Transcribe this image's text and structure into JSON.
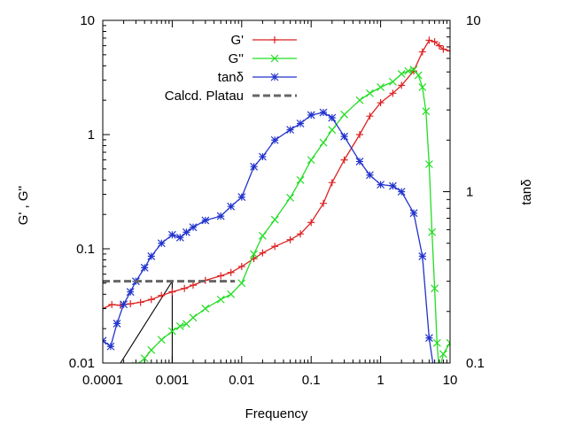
{
  "chart_data": {
    "type": "line",
    "title": "",
    "xlabel": "Frequency",
    "ylabel": "G' , G''",
    "y2label": "tanδ",
    "xscale": "log",
    "yscale": "log",
    "y2scale": "log",
    "xlim": [
      0.0001,
      10
    ],
    "ylim": [
      0.01,
      10
    ],
    "y2lim": [
      0.1,
      10
    ],
    "grid": false,
    "legend_position": "top-center",
    "x_ticks": [
      {
        "value": 0.0001,
        "label": "0.0001"
      },
      {
        "value": 0.001,
        "label": "0.001"
      },
      {
        "value": 0.01,
        "label": "0.01"
      },
      {
        "value": 0.1,
        "label": "0.1"
      },
      {
        "value": 1,
        "label": "1"
      },
      {
        "value": 10,
        "label": "10"
      }
    ],
    "y_ticks": [
      {
        "value": 0.01,
        "label": "0.01"
      },
      {
        "value": 0.1,
        "label": "0.1"
      },
      {
        "value": 1,
        "label": "1"
      },
      {
        "value": 10,
        "label": "10"
      }
    ],
    "y2_ticks": [
      {
        "value": 0.1,
        "label": "0.1"
      },
      {
        "value": 1,
        "label": "1"
      },
      {
        "value": 10,
        "label": "10"
      }
    ],
    "series": [
      {
        "name": "G'",
        "color": "#dd2222",
        "marker": "plus",
        "axis": "left",
        "x": [
          0.0001,
          0.000135,
          0.00018,
          0.00025,
          0.00035,
          0.0005,
          0.0007,
          0.001,
          0.0015,
          0.002,
          0.003,
          0.005,
          0.007,
          0.01,
          0.015,
          0.02,
          0.03,
          0.05,
          0.07,
          0.1,
          0.15,
          0.2,
          0.3,
          0.5,
          0.7,
          1.0,
          1.5,
          2.0,
          3.0,
          4.0,
          5.0,
          6.0,
          7.0,
          8.0,
          10.0
        ],
        "y": [
          0.03,
          0.0325,
          0.032,
          0.033,
          0.034,
          0.036,
          0.039,
          0.042,
          0.045,
          0.048,
          0.053,
          0.058,
          0.062,
          0.07,
          0.082,
          0.092,
          0.105,
          0.12,
          0.135,
          0.17,
          0.25,
          0.38,
          0.6,
          1.0,
          1.45,
          1.9,
          2.3,
          2.7,
          3.6,
          5.3,
          6.7,
          6.5,
          6.0,
          5.6,
          5.4
        ]
      },
      {
        "name": "G''",
        "color": "#22dd22",
        "marker": "cross",
        "axis": "left",
        "x": [
          0.0003,
          0.0004,
          0.0005,
          0.0007,
          0.001,
          0.0013,
          0.0016,
          0.002,
          0.003,
          0.005,
          0.007,
          0.01,
          0.015,
          0.02,
          0.03,
          0.05,
          0.07,
          0.1,
          0.15,
          0.2,
          0.3,
          0.5,
          0.7,
          1.0,
          1.5,
          2.0,
          2.5,
          3.0,
          3.5,
          4.0,
          4.5,
          5.0,
          5.5,
          6.0,
          6.5,
          7.0,
          8.0,
          10.0
        ],
        "y": [
          0.0095,
          0.011,
          0.013,
          0.016,
          0.019,
          0.021,
          0.022,
          0.025,
          0.03,
          0.036,
          0.04,
          0.05,
          0.09,
          0.13,
          0.18,
          0.28,
          0.4,
          0.6,
          0.85,
          1.1,
          1.5,
          2.0,
          2.3,
          2.6,
          2.9,
          3.4,
          3.6,
          3.7,
          3.3,
          2.6,
          1.6,
          0.55,
          0.14,
          0.045,
          0.015,
          0.0085,
          0.012,
          0.015
        ]
      },
      {
        "name": "tanδ",
        "color": "#2233cc",
        "marker": "star",
        "axis": "right",
        "x": [
          0.0001,
          0.00013,
          0.00016,
          0.0002,
          0.00025,
          0.0003,
          0.0004,
          0.0005,
          0.0007,
          0.001,
          0.0013,
          0.0016,
          0.002,
          0.003,
          0.005,
          0.007,
          0.01,
          0.015,
          0.02,
          0.03,
          0.05,
          0.07,
          0.1,
          0.15,
          0.2,
          0.3,
          0.5,
          0.7,
          1.0,
          1.5,
          2.0,
          3.0,
          4.0,
          5.0,
          6.0
        ],
        "y": [
          0.135,
          0.125,
          0.17,
          0.22,
          0.26,
          0.3,
          0.36,
          0.42,
          0.5,
          0.56,
          0.54,
          0.58,
          0.62,
          0.68,
          0.72,
          0.82,
          0.93,
          1.4,
          1.6,
          2.0,
          2.3,
          2.5,
          2.8,
          2.9,
          2.7,
          2.1,
          1.5,
          1.25,
          1.1,
          1.08,
          1.0,
          0.75,
          0.42,
          0.14,
          0.085
        ]
      },
      {
        "name": "Calcd. Platau",
        "color": "#666666",
        "style": "dashed",
        "axis": "left",
        "x": [
          0.0001,
          0.008
        ],
        "y": [
          0.052,
          0.052
        ]
      }
    ],
    "annotations": [
      {
        "type": "slope-triangle",
        "x": [
          0.00018,
          0.001,
          0.001
        ],
        "y": [
          0.01,
          0.052,
          0.01
        ]
      }
    ]
  }
}
